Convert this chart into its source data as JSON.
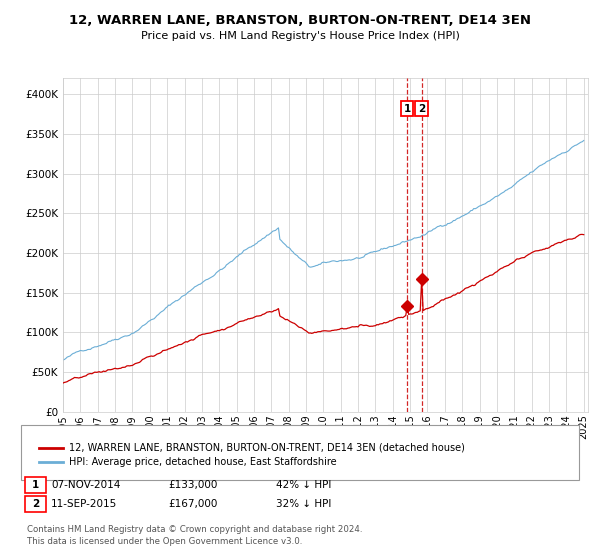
{
  "title": "12, WARREN LANE, BRANSTON, BURTON-ON-TRENT, DE14 3EN",
  "subtitle": "Price paid vs. HM Land Registry's House Price Index (HPI)",
  "hpi_label": "HPI: Average price, detached house, East Staffordshire",
  "price_label": "12, WARREN LANE, BRANSTON, BURTON-ON-TRENT, DE14 3EN (detached house)",
  "transaction1_date": "07-NOV-2014",
  "transaction1_price": 133000,
  "transaction1_pct": "42% ↓ HPI",
  "transaction2_date": "11-SEP-2015",
  "transaction2_price": 167000,
  "transaction2_pct": "32% ↓ HPI",
  "footer": "Contains HM Land Registry data © Crown copyright and database right 2024.\nThis data is licensed under the Open Government Licence v3.0.",
  "hpi_color": "#6baed6",
  "price_color": "#cc0000",
  "vline_color": "#cc0000",
  "background_color": "#ffffff",
  "grid_color": "#cccccc",
  "ylim_max": 420000,
  "ylim_min": 0
}
